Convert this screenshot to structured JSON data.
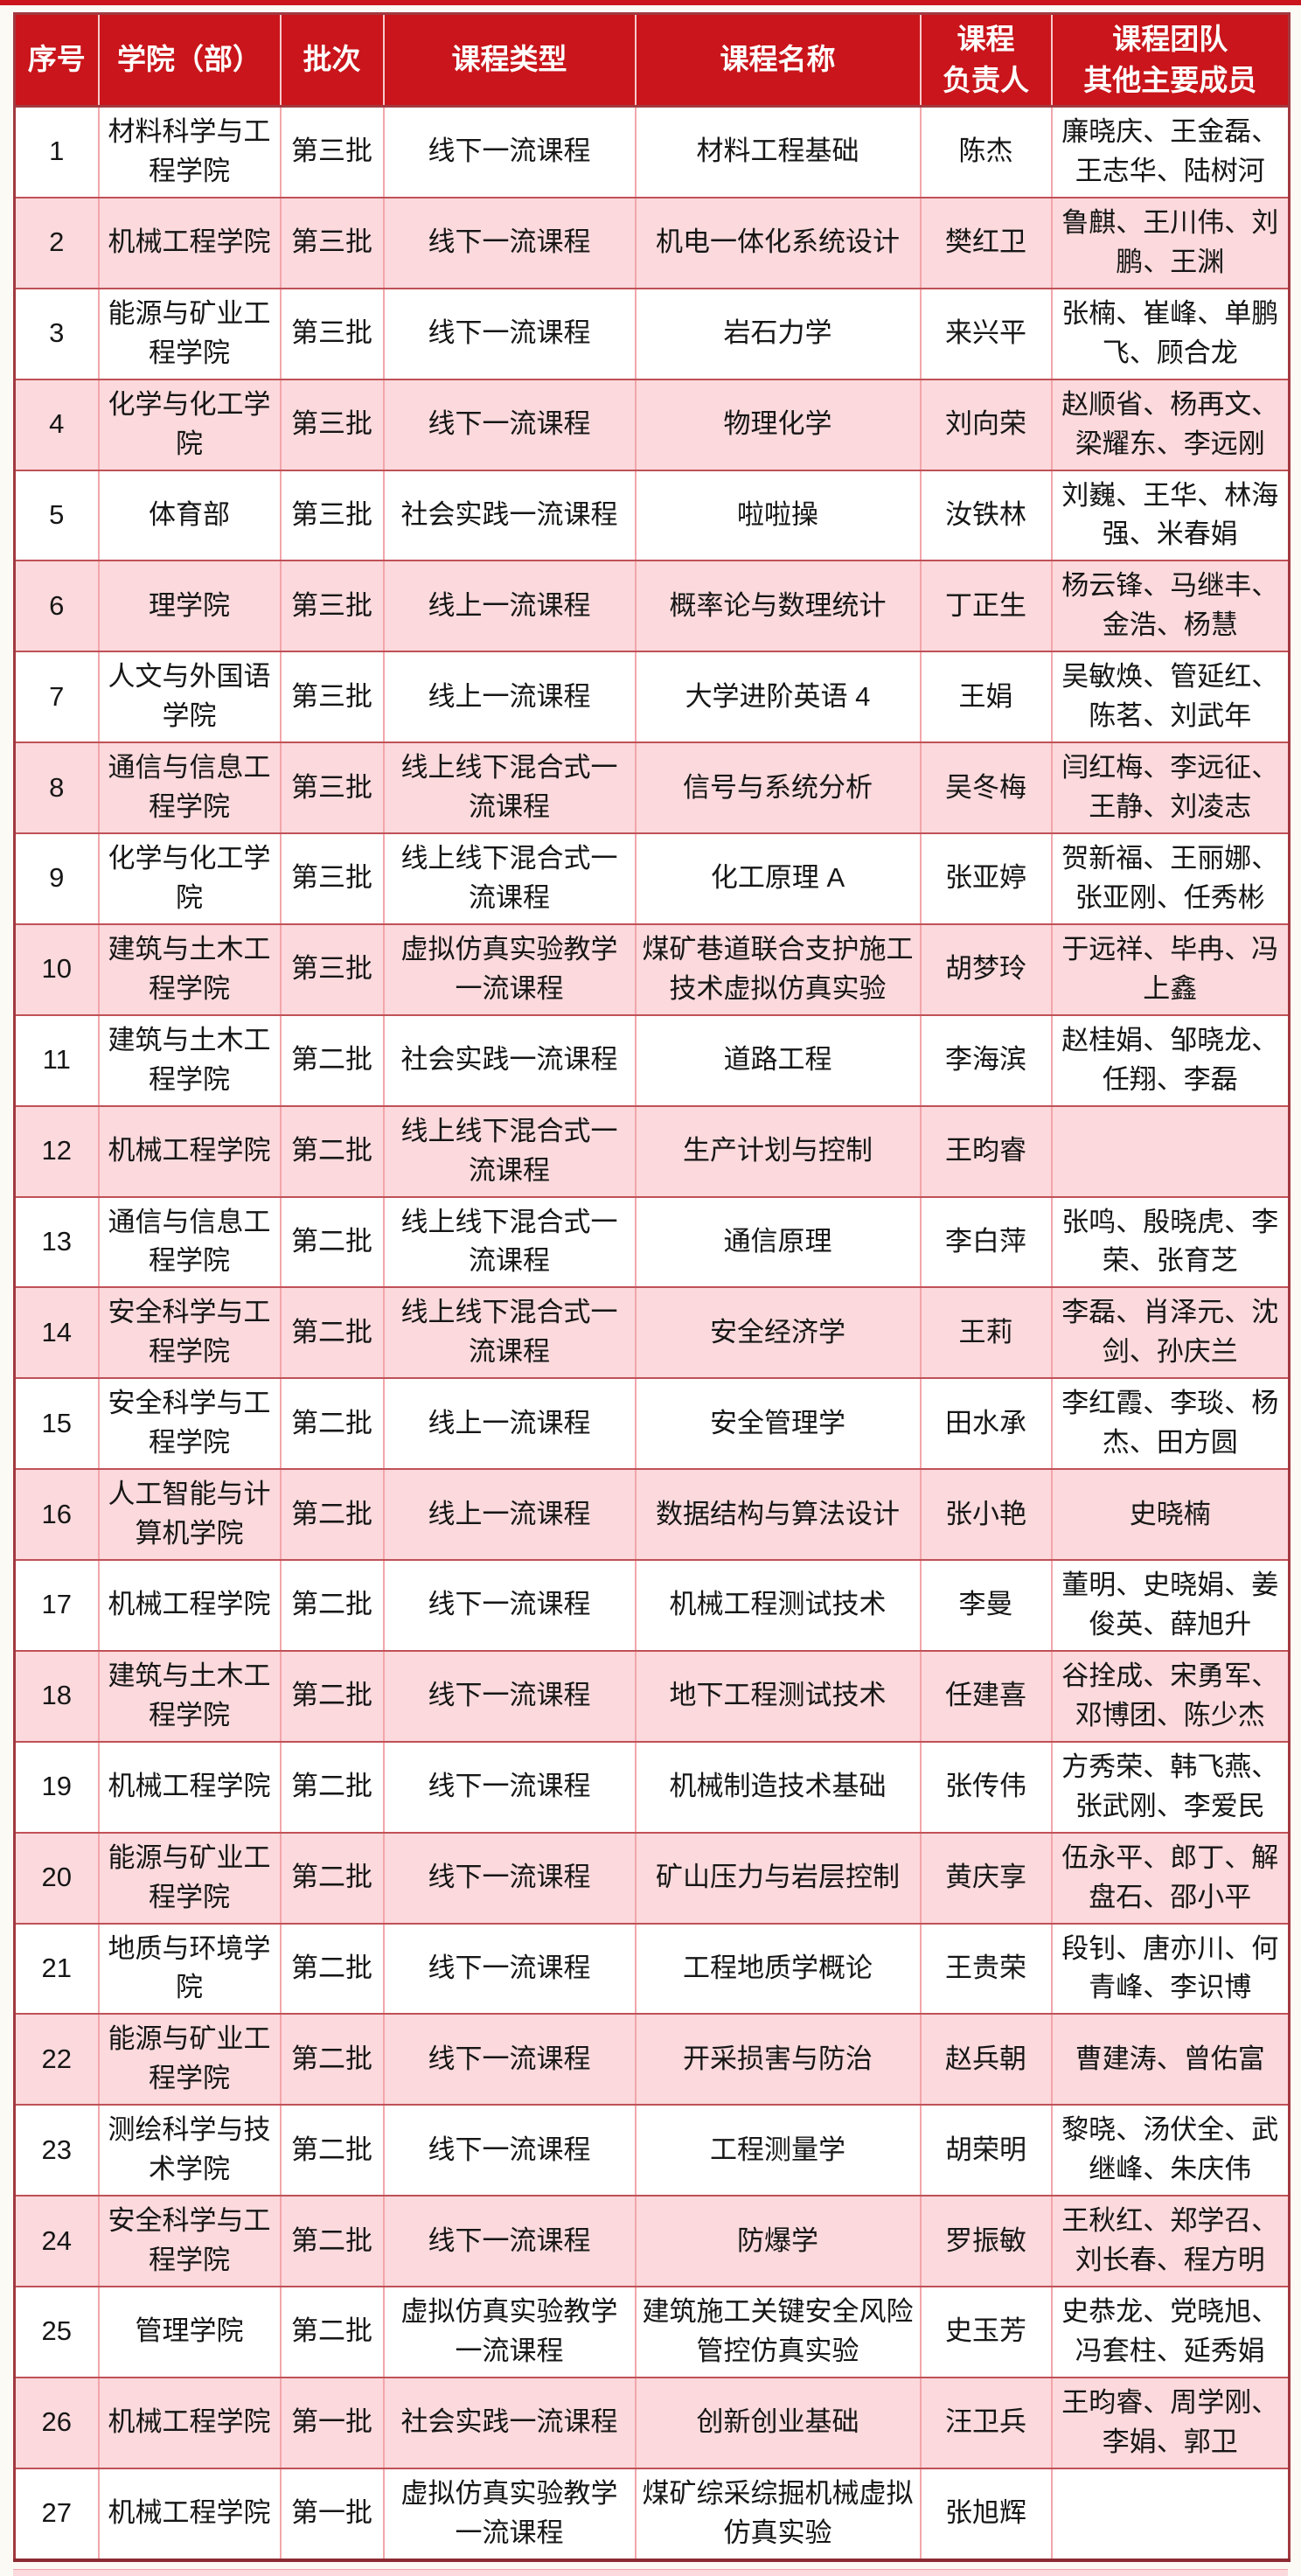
{
  "colors": {
    "header_bg": "#C9151B",
    "alt_row_bg": "#FBD9DC",
    "border_light": "#F2A6AB",
    "border_dark": "#C05158",
    "outer_border": "#A23940",
    "header_text": "#FFFFFF",
    "body_text": "#161616"
  },
  "table": {
    "headers": [
      "序号",
      "学院（部）",
      "批次",
      "课程类型",
      "课程名称",
      "课程\n负责人",
      "课程团队\n其他主要成员"
    ],
    "rows": [
      {
        "no": "1",
        "college": "材料科学与工程学院",
        "batch": "第三批",
        "type": "线下一流课程",
        "name": "材料工程基础",
        "leader": "陈杰",
        "team": "廉晓庆、王金磊、王志华、陆树河"
      },
      {
        "no": "2",
        "college": "机械工程学院",
        "batch": "第三批",
        "type": "线下一流课程",
        "name": "机电一体化系统设计",
        "leader": "樊红卫",
        "team": "鲁麒、王川伟、刘鹏、王渊"
      },
      {
        "no": "3",
        "college": "能源与矿业工程学院",
        "batch": "第三批",
        "type": "线下一流课程",
        "name": "岩石力学",
        "leader": "来兴平",
        "team": "张楠、崔峰、单鹏飞、顾合龙"
      },
      {
        "no": "4",
        "college": "化学与化工学院",
        "batch": "第三批",
        "type": "线下一流课程",
        "name": "物理化学",
        "leader": "刘向荣",
        "team": "赵顺省、杨再文、梁耀东、李远刚"
      },
      {
        "no": "5",
        "college": "体育部",
        "batch": "第三批",
        "type": "社会实践一流课程",
        "name": "啦啦操",
        "leader": "汝铁林",
        "team": "刘巍、王华、林海强、米春娟"
      },
      {
        "no": "6",
        "college": "理学院",
        "batch": "第三批",
        "type": "线上一流课程",
        "name": "概率论与数理统计",
        "leader": "丁正生",
        "team": "杨云锋、马继丰、金浩、杨慧"
      },
      {
        "no": "7",
        "college": "人文与外国语学院",
        "batch": "第三批",
        "type": "线上一流课程",
        "name": "大学进阶英语 4",
        "leader": "王娟",
        "team": "吴敏焕、管延红、陈茗、刘武年"
      },
      {
        "no": "8",
        "college": "通信与信息工程学院",
        "batch": "第三批",
        "type": "线上线下混合式一流课程",
        "name": "信号与系统分析",
        "leader": "吴冬梅",
        "team": "闫红梅、李远征、王静、刘凌志"
      },
      {
        "no": "9",
        "college": "化学与化工学院",
        "batch": "第三批",
        "type": "线上线下混合式一流课程",
        "name": "化工原理 A",
        "leader": "张亚婷",
        "team": "贺新福、王丽娜、张亚刚、任秀彬"
      },
      {
        "no": "10",
        "college": "建筑与土木工程学院",
        "batch": "第三批",
        "type": "虚拟仿真实验教学一流课程",
        "name": "煤矿巷道联合支护施工技术虚拟仿真实验",
        "leader": "胡梦玲",
        "team": "于远祥、毕冉、冯上鑫"
      },
      {
        "no": "11",
        "college": "建筑与土木工程学院",
        "batch": "第二批",
        "type": "社会实践一流课程",
        "name": "道路工程",
        "leader": "李海滨",
        "team": "赵桂娟、邹晓龙、任翔、李磊"
      },
      {
        "no": "12",
        "college": "机械工程学院",
        "batch": "第二批",
        "type": "线上线下混合式一流课程",
        "name": "生产计划与控制",
        "leader": "王昀睿",
        "team": ""
      },
      {
        "no": "13",
        "college": "通信与信息工程学院",
        "batch": "第二批",
        "type": "线上线下混合式一流课程",
        "name": "通信原理",
        "leader": "李白萍",
        "team": "张鸣、殷晓虎、李荣、张育芝"
      },
      {
        "no": "14",
        "college": "安全科学与工程学院",
        "batch": "第二批",
        "type": "线上线下混合式一流课程",
        "name": "安全经济学",
        "leader": "王莉",
        "team": "李磊、肖泽元、沈剑、孙庆兰"
      },
      {
        "no": "15",
        "college": "安全科学与工程学院",
        "batch": "第二批",
        "type": "线上一流课程",
        "name": "安全管理学",
        "leader": "田水承",
        "team": "李红霞、李琰、杨杰、田方圆"
      },
      {
        "no": "16",
        "college": "人工智能与计算机学院",
        "batch": "第二批",
        "type": "线上一流课程",
        "name": "数据结构与算法设计",
        "leader": "张小艳",
        "team": "史晓楠"
      },
      {
        "no": "17",
        "college": "机械工程学院",
        "batch": "第二批",
        "type": "线下一流课程",
        "name": "机械工程测试技术",
        "leader": "李曼",
        "team": "董明、史晓娟、姜俊英、薛旭升"
      },
      {
        "no": "18",
        "college": "建筑与土木工程学院",
        "batch": "第二批",
        "type": "线下一流课程",
        "name": "地下工程测试技术",
        "leader": "任建喜",
        "team": "谷拴成、宋勇军、邓博团、陈少杰"
      },
      {
        "no": "19",
        "college": "机械工程学院",
        "batch": "第二批",
        "type": "线下一流课程",
        "name": "机械制造技术基础",
        "leader": "张传伟",
        "team": "方秀荣、韩飞燕、张武刚、李爱民"
      },
      {
        "no": "20",
        "college": "能源与矿业工程学院",
        "batch": "第二批",
        "type": "线下一流课程",
        "name": "矿山压力与岩层控制",
        "leader": "黄庆享",
        "team": "伍永平、郎丁、解盘石、邵小平"
      },
      {
        "no": "21",
        "college": "地质与环境学院",
        "batch": "第二批",
        "type": "线下一流课程",
        "name": "工程地质学概论",
        "leader": "王贵荣",
        "team": "段钊、唐亦川、何青峰、李识博"
      },
      {
        "no": "22",
        "college": "能源与矿业工程学院",
        "batch": "第二批",
        "type": "线下一流课程",
        "name": "开采损害与防治",
        "leader": "赵兵朝",
        "team": "曹建涛、曾佑富"
      },
      {
        "no": "23",
        "college": "测绘科学与技术学院",
        "batch": "第二批",
        "type": "线下一流课程",
        "name": "工程测量学",
        "leader": "胡荣明",
        "team": "黎晓、汤伏全、武继峰、朱庆伟"
      },
      {
        "no": "24",
        "college": "安全科学与工程学院",
        "batch": "第二批",
        "type": "线下一流课程",
        "name": "防爆学",
        "leader": "罗振敏",
        "team": "王秋红、郑学召、刘长春、程方明"
      },
      {
        "no": "25",
        "college": "管理学院",
        "batch": "第二批",
        "type": "虚拟仿真实验教学一流课程",
        "name": "建筑施工关键安全风险管控仿真实验",
        "leader": "史玉芳",
        "team": "史恭龙、党晓旭、冯套柱、延秀娟"
      },
      {
        "no": "26",
        "college": "机械工程学院",
        "batch": "第一批",
        "type": "社会实践一流课程",
        "name": "创新创业基础",
        "leader": "汪卫兵",
        "team": "王昀睿、周学刚、李娟、郭卫"
      },
      {
        "no": "27",
        "college": "机械工程学院",
        "batch": "第一批",
        "type": "虚拟仿真实验教学一流课程",
        "name": "煤矿综采综掘机械虚拟仿真实验",
        "leader": "张旭辉",
        "team": ""
      }
    ]
  }
}
